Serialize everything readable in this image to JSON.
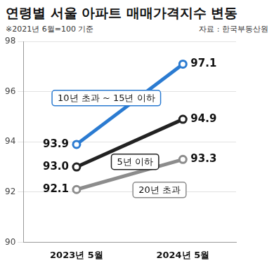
{
  "chart_data": {
    "type": "line",
    "title": "연령별 서울 아파트 매매가격지수 변동",
    "subtitle": "※2021년 6월=100 기준",
    "source": "자료 : 한국부동산원",
    "categories": [
      "2023년 5월",
      "2024년 5월"
    ],
    "series": [
      {
        "name": "10년 초과 ~ 15년 이하",
        "color": "#2b7bd1",
        "values": [
          93.9,
          97.1
        ],
        "value_labels": [
          "93.9",
          "97.1"
        ],
        "marker": "circle",
        "line_style": "solid"
      },
      {
        "name": "5년 이하",
        "color": "#222222",
        "values": [
          93.0,
          94.9
        ],
        "value_labels": [
          "93.0",
          "94.9"
        ],
        "marker": "circle",
        "line_style": "solid"
      },
      {
        "name": "20년 초과",
        "color": "#8c8c8c",
        "values": [
          92.1,
          93.3
        ],
        "value_labels": [
          "92.1",
          "93.3"
        ],
        "marker": "circle",
        "line_style": "solid"
      }
    ],
    "ylim": [
      90,
      98
    ],
    "yticks": [
      90,
      92,
      94,
      96,
      98
    ],
    "grid": true,
    "data_labels": true
  }
}
